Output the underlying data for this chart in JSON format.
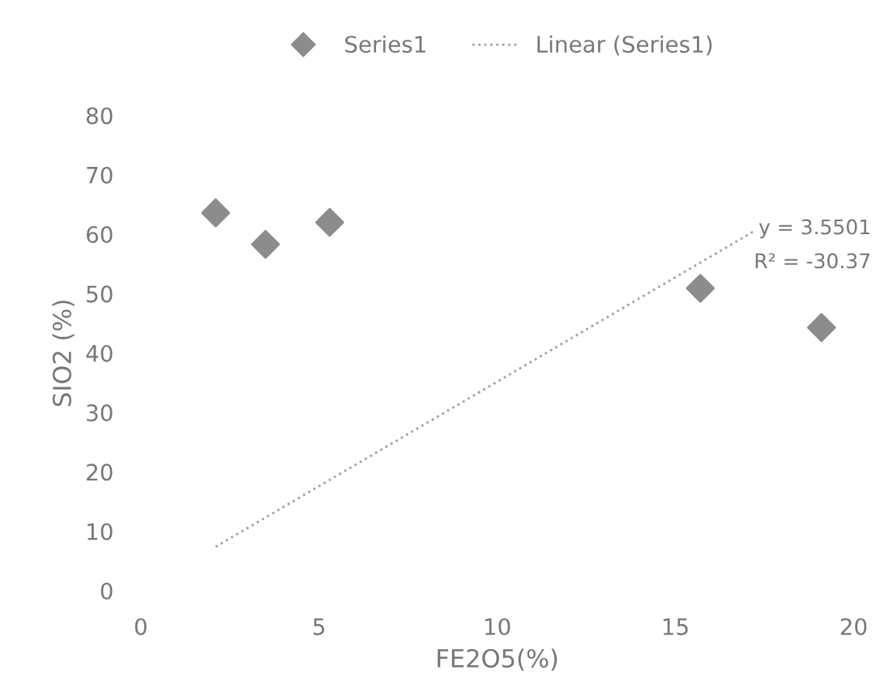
{
  "chart_data": {
    "type": "scatter",
    "xlabel": "FE2O5(%)",
    "ylabel": "SIO2 (%)",
    "xlim": [
      0,
      20
    ],
    "xticks": [
      0,
      5,
      10,
      15,
      20
    ],
    "ylim": [
      0,
      80
    ],
    "yticks": [
      0,
      10,
      20,
      30,
      40,
      50,
      60,
      70,
      80
    ],
    "grid": false,
    "legend": "top",
    "marker": "diamond",
    "series": [
      {
        "name": "Series1",
        "color": "#8c8c8c",
        "x": [
          2.1,
          3.5,
          5.3,
          15.7,
          19.1
        ],
        "values": [
          63.6,
          58.3,
          62,
          50.9,
          44.3
        ]
      },
      {
        "name": "Linear (Series1)",
        "type": "line",
        "line_style": "dotted",
        "marker": "none",
        "color": "#a0a0a0",
        "x": [
          2.1,
          17.2
        ],
        "values": [
          7.4,
          60.5
        ]
      }
    ],
    "annotations": [
      "y = 3.5501",
      "R² = -30.37"
    ]
  }
}
